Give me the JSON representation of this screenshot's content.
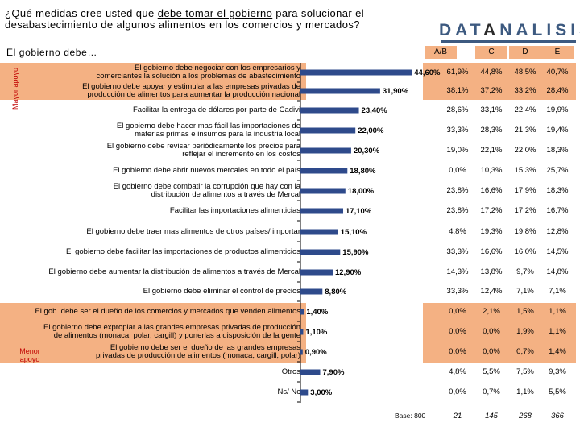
{
  "title": {
    "part1": "¿Qué medidas cree usted que ",
    "underlined": "debe tomar el gobierno",
    "part2": " para solucionar el desabastecimiento de algunos alimentos en los comercios y mercados?"
  },
  "logo": {
    "part1": "DAT",
    "part2": "A",
    "part3": "NALISIS"
  },
  "subtitle": "El gobierno debe…",
  "side_labels": {
    "high": "Mayor apoyo",
    "low": "Menor apoyo"
  },
  "columns": [
    "A/B",
    "C",
    "D",
    "E"
  ],
  "base": {
    "label": "Base: 800",
    "values": [
      "21",
      "145",
      "268",
      "366"
    ]
  },
  "colors": {
    "bar": "#2e4a8b",
    "highlight": "#f4b183",
    "axis": "#000000"
  },
  "chart_data": {
    "type": "bar",
    "orientation": "horizontal",
    "title": "¿Qué medidas cree usted que debe tomar el gobierno para solucionar el desabastecimiento de algunos alimentos en los comercios y mercados?",
    "xlim": [
      0,
      50
    ],
    "categories": [
      "El gobierno debe negociar con los empresarios y comerciantes la solución a los problemas de abastecimiento",
      "El gobierno debe apoyar y estimular a las empresas privadas de producción de alimentos para aumentar la producción nacional",
      "Facilitar la entrega de dólares por parte de Cadivi",
      "El gobierno debe hacer mas fácil las importaciones de materias primas e insumos para la industria local",
      "El gobierno debe revisar periódicamente los precios para reflejar el incremento en los costos",
      "El gobierno debe abrir nuevos mercales en todo el país",
      "El gobierno debe combatir la corrupción que hay con la distribución de alimentos a través de Mercal",
      "Facilitar las importaciones alimenticias",
      "El gobierno debe traer mas alimentos de otros países/ importar",
      "El gobierno debe facilitar las importaciones de productos alimenticios",
      "El gobierno debe aumentar la distribución de alimentos a través de Mercal",
      "El gobierno debe eliminar el control de precios",
      "El gob. debe ser el dueño de los comercios y mercados que venden alimentos",
      "El gobierno debe expropiar a las grandes empresas privadas de producción de alimentos (monaca, polar, cargill) y ponerlas a disposición de la gente",
      "El gobierno debe ser el dueño de las grandes empresas privadas de producción de alimentos (monaca, cargill, polar)",
      "Otros",
      "Ns/ Nc"
    ],
    "label_lines": [
      [
        "El gobierno debe negociar con los empresarios y",
        "comerciantes la  solución a los problemas de abastecimiento"
      ],
      [
        "El gobierno debe apoyar y estimular a las empresas privadas de",
        "producción de alimentos para aumentar la producción nacional"
      ],
      [
        "Facilitar la entrega de dólares por parte de Cadivi"
      ],
      [
        "El gobierno debe hacer mas fácil las importaciones de",
        "materias primas e insumos para la industria local"
      ],
      [
        "El gobierno debe revisar periódicamente los precios para",
        "reflejar el incremento en los costos"
      ],
      [
        "El gobierno debe abrir nuevos mercales en todo el país"
      ],
      [
        "El gobierno debe combatir la corrupción que hay con la",
        "distribución de alimentos a través de Mercal"
      ],
      [
        "Facilitar las importaciones alimenticias"
      ],
      [
        "El gobierno debe traer mas alimentos de otros países/ importar"
      ],
      [
        "El gobierno debe facilitar las importaciones de productos alimenticios"
      ],
      [
        "El gobierno debe aumentar la distribución de alimentos a través de Mercal"
      ],
      [
        "El gobierno debe eliminar el control de precios"
      ],
      [
        "El gob. debe ser el dueño de los comercios y mercados que venden alimentos"
      ],
      [
        "El gobierno debe expropiar a las grandes empresas privadas de  producción",
        "de alimentos (monaca, polar, cargill) y ponerlas a disposición de la gente"
      ],
      [
        "El gobierno debe ser el dueño de las grandes empresas",
        "privadas de producción de alimentos (monaca, cargill, polar)"
      ],
      [
        "Otros"
      ],
      [
        "Ns/ Nc"
      ]
    ],
    "values": [
      44.6,
      31.9,
      23.4,
      22.0,
      20.3,
      18.8,
      18.0,
      17.1,
      15.1,
      15.9,
      12.9,
      8.8,
      1.4,
      1.1,
      0.9,
      7.9,
      3.0
    ],
    "value_labels": [
      "44,60%",
      "31,90%",
      "23,40%",
      "22,00%",
      "20,30%",
      "18,80%",
      "18,00%",
      "17,10%",
      "15,10%",
      "15,90%",
      "12,90%",
      "8,80%",
      "1,40%",
      "1,10%",
      "0,90%",
      "7,90%",
      "3,00%"
    ],
    "table": [
      [
        "61,9%",
        "44,8%",
        "48,5%",
        "40,7%"
      ],
      [
        "38,1%",
        "37,2%",
        "33,2%",
        "28,4%"
      ],
      [
        "28,6%",
        "33,1%",
        "22,4%",
        "19,9%"
      ],
      [
        "33,3%",
        "28,3%",
        "21,3%",
        "19,4%"
      ],
      [
        "19,0%",
        "22,1%",
        "22,0%",
        "18,3%"
      ],
      [
        "0,0%",
        "10,3%",
        "15,3%",
        "25,7%"
      ],
      [
        "23,8%",
        "16,6%",
        "17,9%",
        "18,3%"
      ],
      [
        "23,8%",
        "17,2%",
        "17,2%",
        "16,7%"
      ],
      [
        "4,8%",
        "19,3%",
        "19,8%",
        "12,8%"
      ],
      [
        "33,3%",
        "16,6%",
        "16,0%",
        "14,5%"
      ],
      [
        "14,3%",
        "13,8%",
        "9,7%",
        "14,8%"
      ],
      [
        "33,3%",
        "12,4%",
        "7,1%",
        "7,1%"
      ],
      [
        "0,0%",
        "2,1%",
        "1,5%",
        "1,1%"
      ],
      [
        "0,0%",
        "0,0%",
        "1,9%",
        "1,1%"
      ],
      [
        "0,0%",
        "0,0%",
        "0,7%",
        "1,4%"
      ],
      [
        "4,8%",
        "5,5%",
        "7,5%",
        "9,3%"
      ],
      [
        "0,0%",
        "0,7%",
        "1,1%",
        "5,5%"
      ]
    ]
  }
}
